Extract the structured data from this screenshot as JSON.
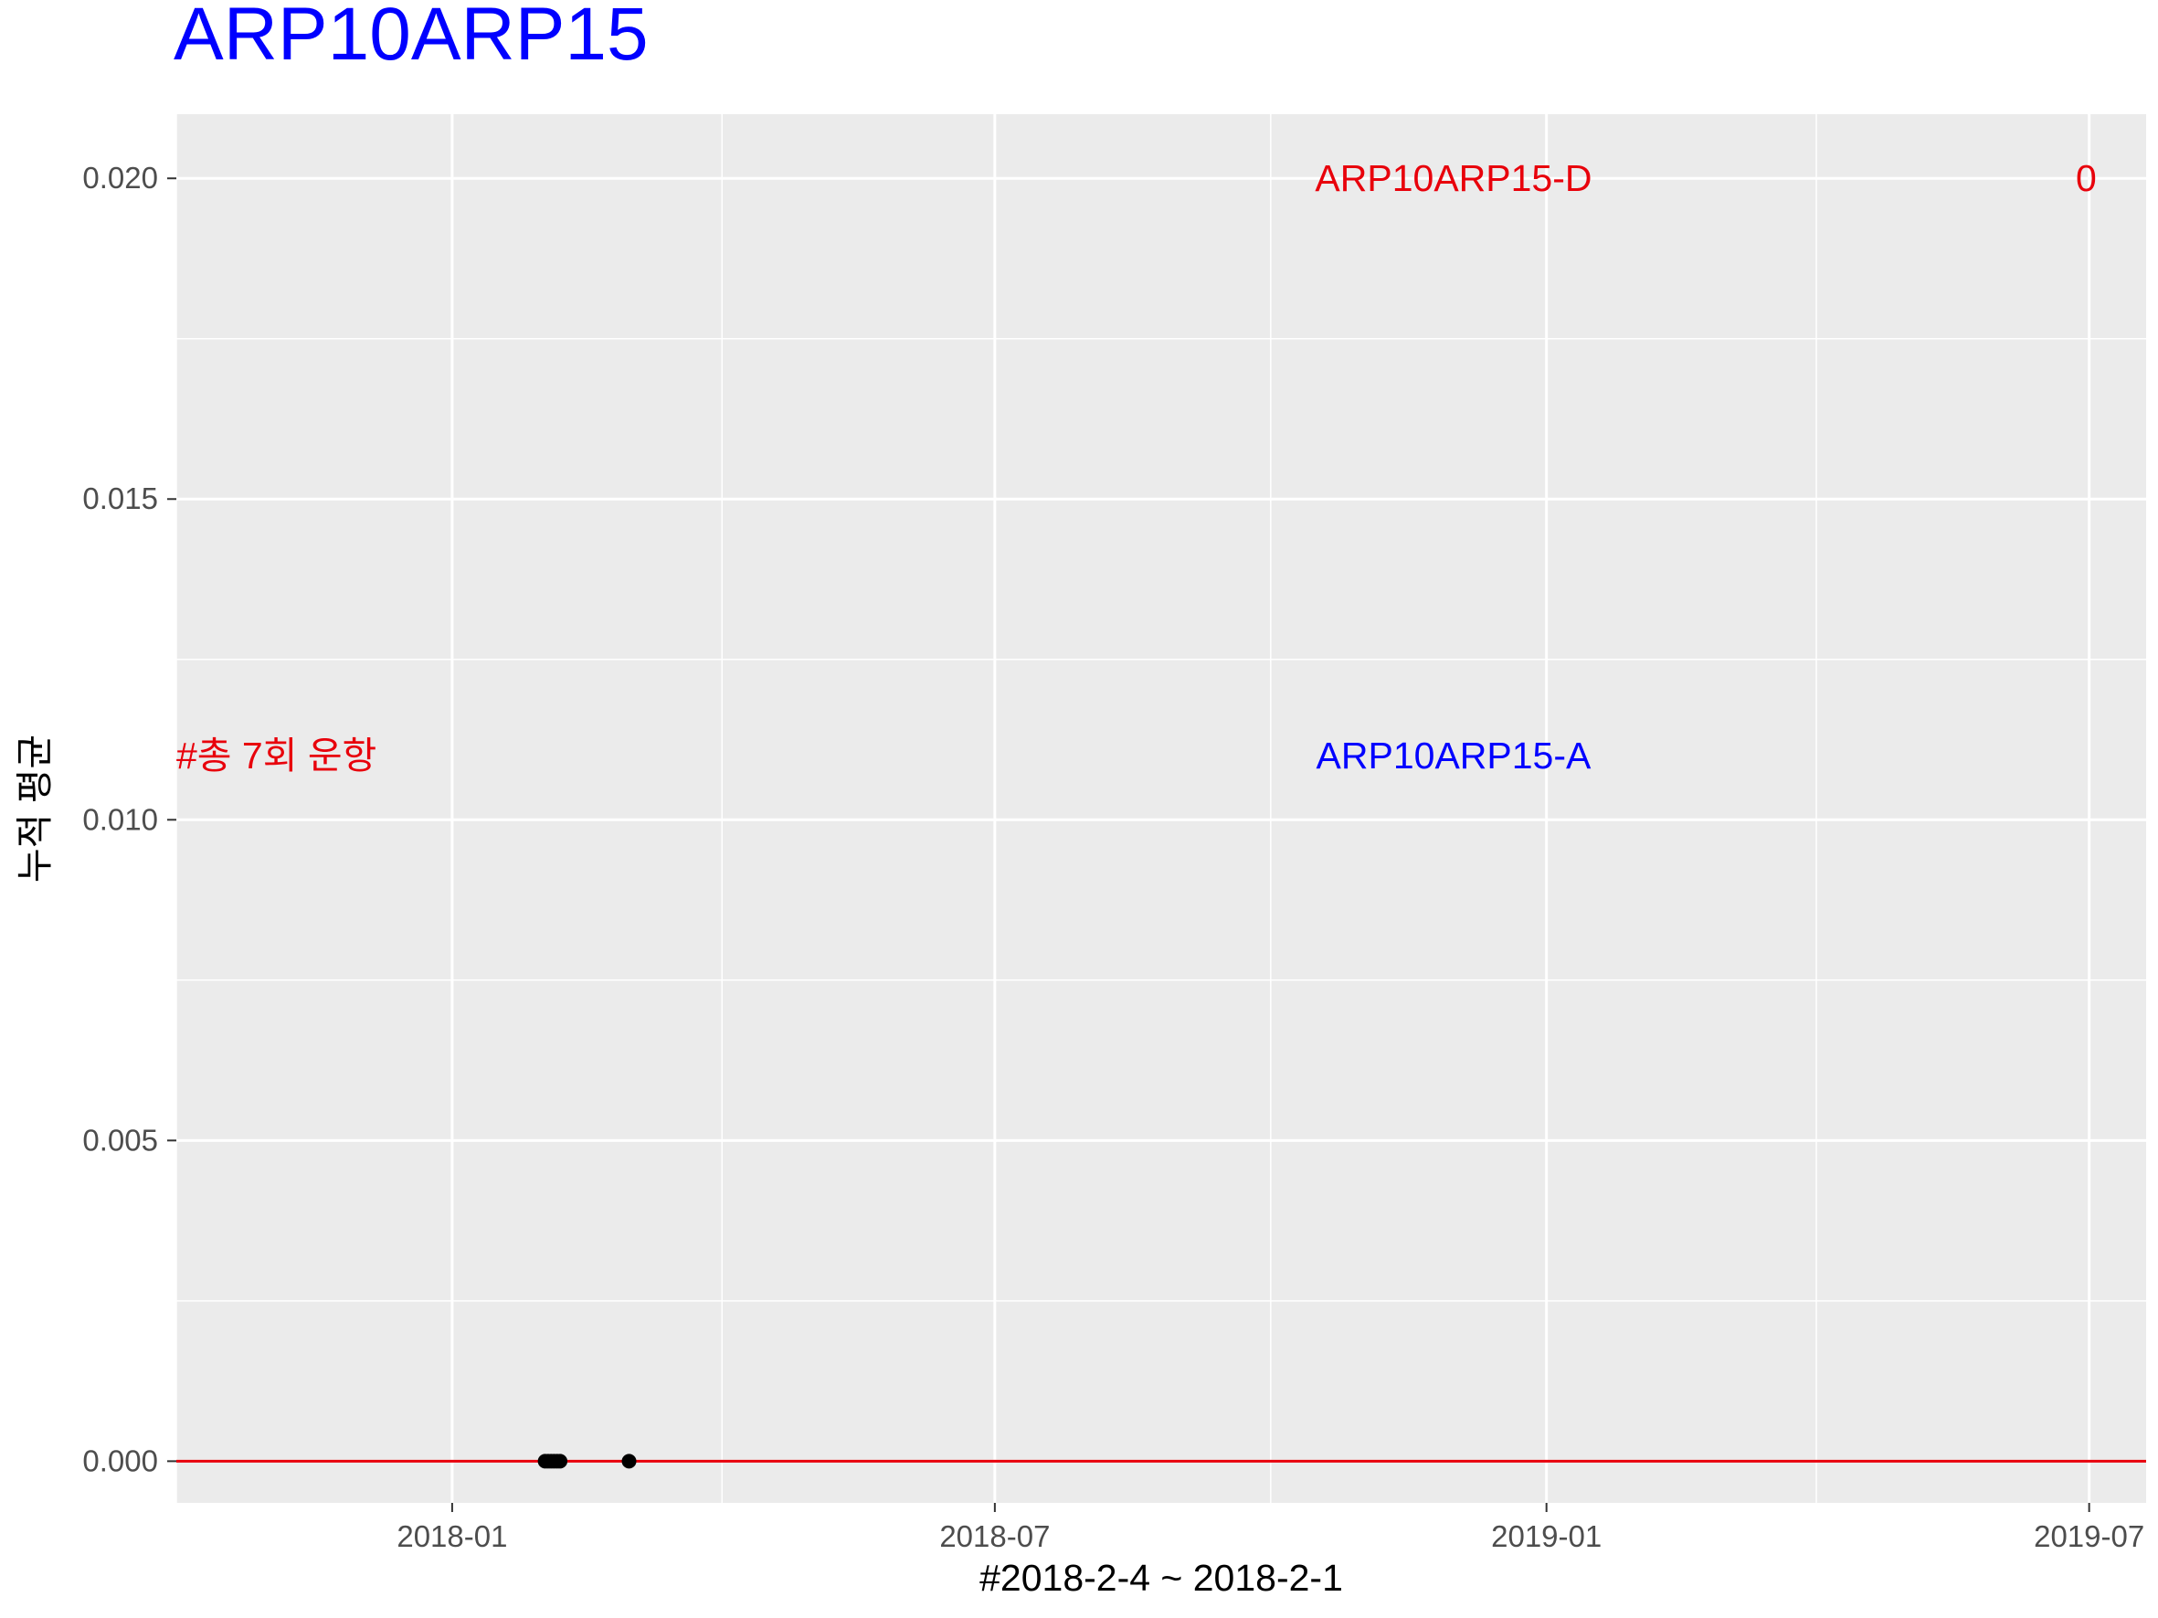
{
  "chart_data": {
    "type": "scatter",
    "title": "ARP10ARP15",
    "xlabel": "#2018-2-4 ~ 2018-2-1",
    "ylabel": "누적 평균",
    "xlim": [
      "2017-10-01",
      "2019-07-20"
    ],
    "ylim": [
      -0.00065,
      0.021
    ],
    "x_ticks": [
      "2018-01",
      "2018-07",
      "2019-01",
      "2019-07"
    ],
    "x_tick_dates": [
      "2018-01-01",
      "2018-07-01",
      "2019-01-01",
      "2019-07-01"
    ],
    "x_minor_dates": [
      "2017-10-01",
      "2018-04-01",
      "2018-10-01",
      "2019-04-01"
    ],
    "y_ticks": [
      "0.000",
      "0.005",
      "0.010",
      "0.015",
      "0.020"
    ],
    "y_tick_values": [
      0,
      0.005,
      0.01,
      0.015,
      0.02
    ],
    "y_minor_values": [
      0.0025,
      0.0075,
      0.0125,
      0.0175
    ],
    "grid": true,
    "points": [
      {
        "x": "2018-02-01",
        "y": 0
      },
      {
        "x": "2018-02-02",
        "y": 0
      },
      {
        "x": "2018-02-03",
        "y": 0
      },
      {
        "x": "2018-02-04",
        "y": 0
      },
      {
        "x": "2018-02-05",
        "y": 0
      },
      {
        "x": "2018-02-06",
        "y": 0
      },
      {
        "x": "2018-03-01",
        "y": 0
      }
    ],
    "hline": {
      "y": 0,
      "color": "#e8000b"
    },
    "annotations": [
      {
        "text": "ARP10ARP15-D",
        "x": "2018-12-01",
        "y": 0.02,
        "color": "#e8000b",
        "anchor": "middle"
      },
      {
        "text": "0",
        "x": "2019-06-30",
        "y": 0.02,
        "color": "#e8000b",
        "anchor": "middle"
      },
      {
        "text": "ARP10ARP15-A",
        "x": "2018-12-01",
        "y": 0.011,
        "color": "#0000ff",
        "anchor": "middle"
      },
      {
        "text": "#총 7회 운항",
        "x": "2017-10-01",
        "y": 0.011,
        "color": "#e8000b",
        "anchor": "start"
      }
    ],
    "colors": {
      "title": "#0000ff",
      "panel": "#ebebeb",
      "grid": "#ffffff",
      "point": "#000000"
    }
  }
}
